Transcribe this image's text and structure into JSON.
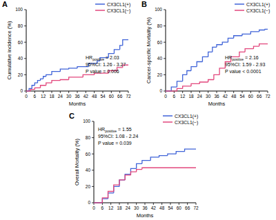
{
  "chart_data": [
    {
      "type": "line",
      "title": "A",
      "x_label": "Months",
      "y_label": "Cumulative incidence (%)",
      "xlim": [
        0,
        72
      ],
      "xticks": [
        0,
        6,
        12,
        18,
        24,
        30,
        36,
        42,
        48,
        54,
        60,
        66,
        72
      ],
      "ylim": [
        0,
        100
      ],
      "yticks": [
        0,
        20,
        40,
        60,
        80,
        100
      ],
      "legend": "upper right",
      "line_style": "step",
      "annotations": [
        {
          "text": "HR",
          "subscript": "positive",
          "suffix": " = 2.03"
        },
        {
          "text": "95%CI: 1.26 - 3.27"
        },
        {
          "text": "P value = 0.006"
        }
      ],
      "series": [
        {
          "name": "CX3CL1(+)",
          "color": "#3f63d8",
          "x": [
            0,
            2,
            4,
            6,
            8,
            10,
            12,
            14,
            18,
            24,
            30,
            36,
            44,
            50,
            52,
            58,
            62,
            66,
            68,
            72
          ],
          "values": [
            0,
            3,
            7,
            10,
            13,
            15,
            18,
            20,
            24,
            27,
            28,
            30,
            34,
            37,
            41,
            46,
            51,
            56,
            63,
            63
          ]
        },
        {
          "name": "CX3CL1(−)",
          "color": "#e2467c",
          "x": [
            0,
            3,
            6,
            10,
            14,
            18,
            24,
            30,
            40,
            48,
            58,
            64,
            68,
            72
          ],
          "values": [
            0,
            2,
            4,
            7,
            10,
            13,
            14,
            17,
            20,
            22,
            25,
            29,
            32,
            32
          ]
        }
      ]
    },
    {
      "type": "line",
      "title": "B",
      "x_label": "Months",
      "y_label": "Cancer-specific Mortality (%)",
      "xlim": [
        0,
        72
      ],
      "xticks": [
        0,
        6,
        12,
        18,
        24,
        30,
        36,
        42,
        48,
        54,
        60,
        66,
        72
      ],
      "ylim": [
        0,
        100
      ],
      "yticks": [
        0,
        20,
        40,
        60,
        80,
        100
      ],
      "legend": "upper right",
      "line_style": "step",
      "annotations": [
        {
          "text": "HR",
          "subscript": "positive",
          "suffix": " = 2.16"
        },
        {
          "text": "95%CI: 1.59 - 2.93"
        },
        {
          "text": "P value < 0.0001"
        }
      ],
      "series": [
        {
          "name": "CX3CL1(+)",
          "color": "#3f63d8",
          "x": [
            0,
            4,
            8,
            12,
            15,
            18,
            22,
            26,
            30,
            33,
            36,
            40,
            44,
            48,
            54,
            60,
            66,
            70,
            72
          ],
          "values": [
            0,
            5,
            12,
            20,
            25,
            30,
            36,
            42,
            48,
            54,
            57,
            60,
            65,
            68,
            70,
            73,
            75,
            76,
            76
          ]
        },
        {
          "name": "CX3CL1(−)",
          "color": "#e2467c",
          "x": [
            0,
            6,
            8,
            12,
            18,
            24,
            30,
            34,
            38,
            42,
            46,
            52,
            56,
            62,
            66,
            72
          ],
          "values": [
            0,
            0,
            3,
            6,
            9,
            11,
            14,
            20,
            28,
            36,
            42,
            48,
            52,
            55,
            58,
            58
          ]
        }
      ]
    },
    {
      "type": "line",
      "title": "C",
      "x_label": "Months",
      "y_label": "Overall Mortality (%)",
      "xlim": [
        0,
        72
      ],
      "xticks": [
        0,
        6,
        12,
        18,
        24,
        30,
        36,
        42,
        48,
        54,
        60,
        66,
        72
      ],
      "ylim": [
        0,
        100
      ],
      "yticks": [
        0,
        20,
        40,
        60,
        80,
        100
      ],
      "legend": "upper right",
      "line_style": "step",
      "annotations": [
        {
          "text": "HR",
          "subscript": "positive",
          "suffix": " = 1.55"
        },
        {
          "text": "95%CI: 1.08 - 2.24"
        },
        {
          "text": "P value = 0.039"
        }
      ],
      "series": [
        {
          "name": "CX3CL1(+)",
          "color": "#3f63d8",
          "x": [
            0,
            6,
            10,
            14,
            18,
            22,
            26,
            30,
            34,
            40,
            46,
            52,
            58,
            64,
            72
          ],
          "values": [
            0,
            5,
            12,
            20,
            28,
            35,
            42,
            48,
            52,
            56,
            58,
            60,
            63,
            66,
            66
          ]
        },
        {
          "name": "CX3CL1(−)",
          "color": "#e2467c",
          "x": [
            0,
            6,
            10,
            14,
            18,
            22,
            26,
            30,
            34,
            72
          ],
          "values": [
            0,
            6,
            14,
            22,
            28,
            34,
            38,
            41,
            43,
            43
          ]
        }
      ]
    }
  ]
}
